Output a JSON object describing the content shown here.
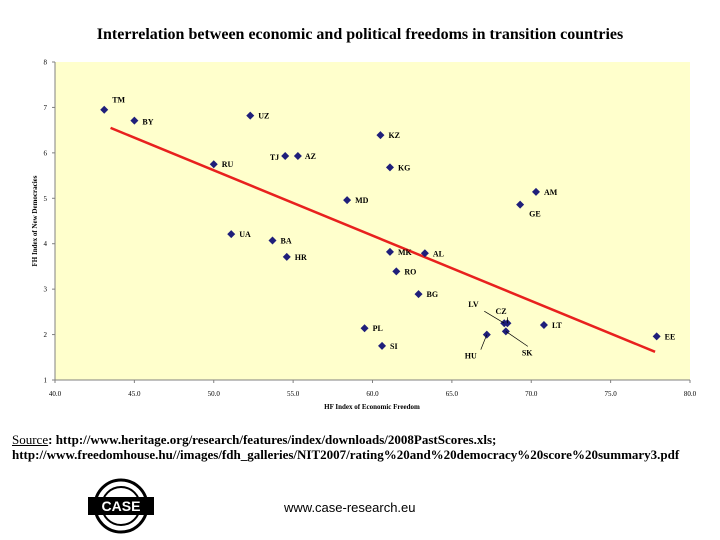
{
  "chart_data": {
    "type": "scatter",
    "title": "Interrelation between economic and political freedoms in transition countries",
    "xlabel": "HF Index of Economic Freedom",
    "ylabel": "FH Index of New Democracies",
    "xlim": [
      40,
      80
    ],
    "ylim": [
      1,
      8
    ],
    "xticks": [
      "40.0",
      "45.0",
      "50.0",
      "55.0",
      "60.0",
      "65.0",
      "70.0",
      "75.0",
      "80.0"
    ],
    "yticks": [
      "1",
      "2",
      "3",
      "4",
      "5",
      "6",
      "7",
      "8"
    ],
    "grid": false,
    "background": "#FFFFCC",
    "marker_color": "#1F1F7A",
    "trendline_color": "#E8211E",
    "trendline": {
      "x": [
        43.5,
        77.8
      ],
      "y": [
        6.55,
        1.62
      ]
    },
    "points": [
      {
        "label": "TM",
        "x": 43.1,
        "y": 6.95
      },
      {
        "label": "BY",
        "x": 45.0,
        "y": 6.71
      },
      {
        "label": "UZ",
        "x": 52.3,
        "y": 6.82
      },
      {
        "label": "KZ",
        "x": 60.5,
        "y": 6.39
      },
      {
        "label": "TJ",
        "x": 54.5,
        "y": 5.93
      },
      {
        "label": "AZ",
        "x": 55.3,
        "y": 5.93
      },
      {
        "label": "RU",
        "x": 50.0,
        "y": 5.75
      },
      {
        "label": "KG",
        "x": 61.1,
        "y": 5.68
      },
      {
        "label": "AM",
        "x": 70.3,
        "y": 5.14
      },
      {
        "label": "MD",
        "x": 58.4,
        "y": 4.96
      },
      {
        "label": "GE",
        "x": 69.3,
        "y": 4.86
      },
      {
        "label": "UA",
        "x": 51.1,
        "y": 4.21
      },
      {
        "label": "BA",
        "x": 53.7,
        "y": 4.07
      },
      {
        "label": "MK",
        "x": 61.1,
        "y": 3.82
      },
      {
        "label": "AL",
        "x": 63.3,
        "y": 3.79
      },
      {
        "label": "HR",
        "x": 54.6,
        "y": 3.71
      },
      {
        "label": "RO",
        "x": 61.5,
        "y": 3.39
      },
      {
        "label": "BG",
        "x": 62.9,
        "y": 2.89
      },
      {
        "label": "LV",
        "x": 68.3,
        "y": 2.25
      },
      {
        "label": "CZ",
        "x": 68.5,
        "y": 2.25
      },
      {
        "label": "LT",
        "x": 70.8,
        "y": 2.21
      },
      {
        "label": "PL",
        "x": 59.5,
        "y": 2.14
      },
      {
        "label": "HU",
        "x": 67.2,
        "y": 2.0
      },
      {
        "label": "SK",
        "x": 68.4,
        "y": 2.07
      },
      {
        "label": "EE",
        "x": 77.9,
        "y": 1.96
      },
      {
        "label": "SI",
        "x": 60.6,
        "y": 1.75
      }
    ]
  },
  "source": {
    "lead": "Source",
    "url1": "http://www.heritage.org/research/features/index/downloads/2008PastScores.xls;",
    "url2": "http://www.freedomhouse.hu//images/fdh_galleries/NIT2007/rating%20and%20democracy%20score%20summary3.pdf"
  },
  "logo_text": "CASE",
  "website": "www.case-research.eu"
}
